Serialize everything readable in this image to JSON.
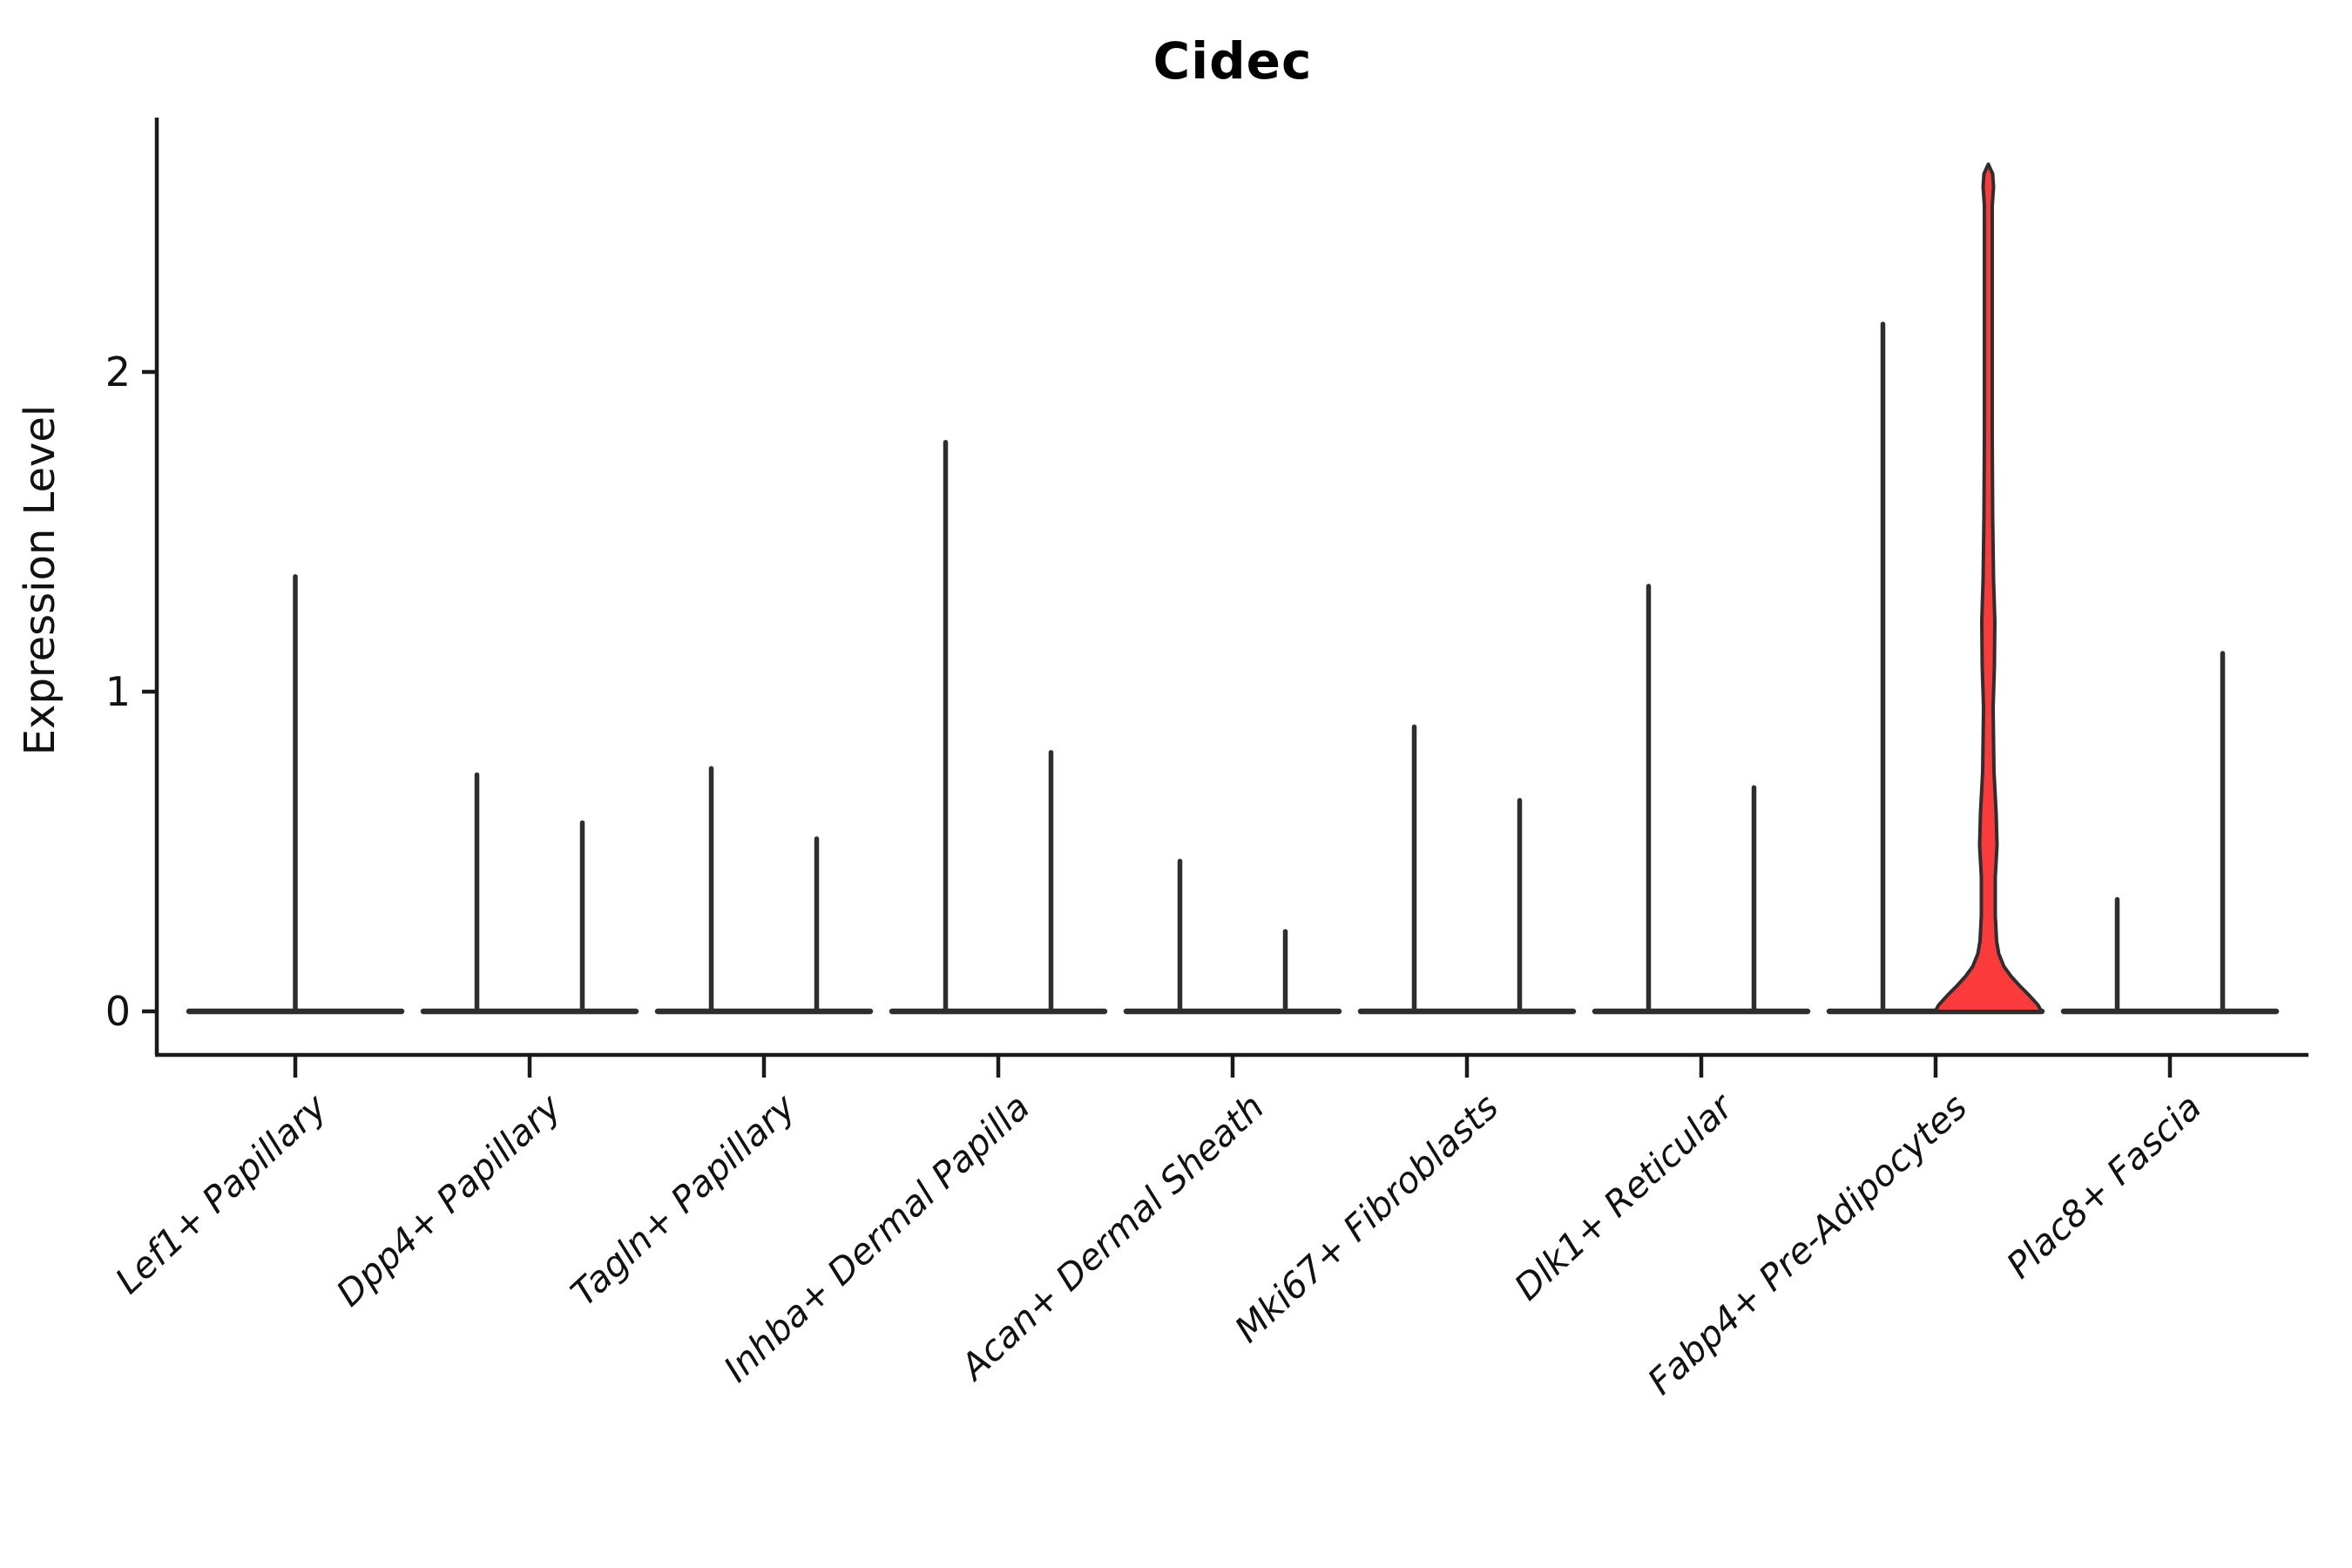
{
  "title": "Cidec",
  "axes": {
    "ylabel": "Expression Level",
    "ytick_labels": [
      "0",
      "1",
      "2"
    ]
  },
  "colors": {
    "violin_stroke": "#2e2e2e",
    "axis": "#1a1a1a",
    "text": "#111111",
    "highlight_fill": "#fb3b3b",
    "background": "#ffffff"
  },
  "chart_data": {
    "type": "violin",
    "title": "Cidec",
    "xlabel": "",
    "ylabel": "Expression Level",
    "ylim": [
      -0.14,
      2.8
    ],
    "yticks": [
      0,
      1,
      2
    ],
    "grid": false,
    "legend": "none",
    "categories": [
      "Lef1+ Papillary",
      "Dpp4+ Papillary",
      "Tagln+ Papillary",
      "Inhba+ Dermal Papilla",
      "Acan+ Dermal Sheath",
      "Mki67+ Fibroblasts",
      "Dlk1+ Reticular",
      "Fabp4+ Pre-Adipocytes",
      "Plac8+ Fascia"
    ],
    "series": [
      {
        "category": "Lef1+ Papillary",
        "violins": [
          {
            "max": 1.36,
            "single": true
          }
        ]
      },
      {
        "category": "Dpp4+ Papillary",
        "violins": [
          {
            "max": 0.74
          },
          {
            "max": 0.59
          }
        ]
      },
      {
        "category": "Tagln+ Papillary",
        "violins": [
          {
            "max": 0.76
          },
          {
            "max": 0.54
          }
        ]
      },
      {
        "category": "Inhba+ Dermal Papilla",
        "violins": [
          {
            "max": 1.78
          },
          {
            "max": 0.81
          }
        ]
      },
      {
        "category": "Acan+ Dermal Sheath",
        "violins": [
          {
            "max": 0.47
          },
          {
            "max": 0.25
          }
        ]
      },
      {
        "category": "Mki67+ Fibroblasts",
        "violins": [
          {
            "max": 0.89
          },
          {
            "max": 0.66
          }
        ]
      },
      {
        "category": "Dlk1+ Reticular",
        "violins": [
          {
            "max": 1.33
          },
          {
            "max": 0.7
          }
        ]
      },
      {
        "category": "Fabp4+ Pre-Adipocytes",
        "violins": [
          {
            "max": 2.15
          },
          {
            "max": 2.65,
            "fill": "#fb3b3b",
            "profile": [
              [
                0.0,
                61
              ],
              [
                0.02,
                57
              ],
              [
                0.05,
                47
              ],
              [
                0.08,
                36
              ],
              [
                0.11,
                26
              ],
              [
                0.14,
                18
              ],
              [
                0.18,
                12
              ],
              [
                0.22,
                9.5
              ],
              [
                0.3,
                8
              ],
              [
                0.42,
                8
              ],
              [
                0.52,
                10
              ],
              [
                0.62,
                9
              ],
              [
                0.75,
                6.5
              ],
              [
                0.95,
                5.5
              ],
              [
                1.08,
                7
              ],
              [
                1.22,
                7.5
              ],
              [
                1.35,
                6
              ],
              [
                1.55,
                5
              ],
              [
                1.8,
                4.5
              ],
              [
                2.1,
                4.5
              ],
              [
                2.4,
                4.5
              ],
              [
                2.52,
                4.5
              ],
              [
                2.58,
                6
              ],
              [
                2.62,
                5
              ],
              [
                2.65,
                0
              ]
            ]
          }
        ]
      },
      {
        "category": "Plac8+ Fascia",
        "violins": [
          {
            "max": 0.35
          },
          {
            "max": 1.12
          }
        ]
      }
    ]
  }
}
